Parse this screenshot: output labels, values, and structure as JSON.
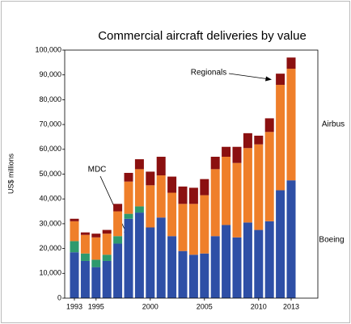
{
  "chart_data": {
    "type": "stacked-bar",
    "title": "Commercial aircraft deliveries by value",
    "ylabel": "US$ millions",
    "categories": [
      "1993",
      null,
      "1995",
      null,
      null,
      null,
      null,
      "2000",
      null,
      null,
      null,
      null,
      "2005",
      null,
      null,
      null,
      null,
      "2010",
      null,
      null,
      "2013"
    ],
    "series": [
      {
        "name": "Boeing",
        "color": "#2e4fa6",
        "values": [
          18500,
          15000,
          12500,
          15000,
          22000,
          32000,
          34500,
          28500,
          32500,
          25000,
          19000,
          17500,
          18000,
          25000,
          29500,
          24500,
          30500,
          27500,
          31000,
          43500,
          47500
        ]
      },
      {
        "name": "MDC",
        "color": "#2e9a6e",
        "values": [
          4500,
          3000,
          3000,
          2500,
          3000,
          2000,
          2500,
          0,
          0,
          0,
          0,
          0,
          0,
          0,
          0,
          0,
          0,
          0,
          0,
          0,
          0
        ]
      },
      {
        "name": "Airbus",
        "color": "#ef7f2a",
        "values": [
          8000,
          7500,
          9000,
          8500,
          10000,
          13000,
          15000,
          17000,
          17000,
          17500,
          19000,
          20500,
          23500,
          27000,
          27500,
          30000,
          30000,
          34500,
          36000,
          42500,
          45000
        ]
      },
      {
        "name": "Regionals",
        "color": "#8b1010",
        "values": [
          1000,
          1000,
          1500,
          1500,
          3000,
          3500,
          4000,
          5500,
          7500,
          6500,
          7000,
          6500,
          6500,
          5000,
          4000,
          6500,
          6000,
          3500,
          5500,
          4500,
          4500
        ]
      }
    ],
    "ylim": [
      0,
      100000
    ],
    "yticks": [
      0,
      {
        "value": 10000,
        "label": "10,000"
      },
      {
        "value": 20000,
        "label": "20,000"
      },
      {
        "value": 30000,
        "label": "30,000"
      },
      {
        "value": 40000,
        "label": "40,000"
      },
      {
        "value": 50000,
        "label": "50,000"
      },
      {
        "value": 60000,
        "label": "60,000"
      },
      {
        "value": 70000,
        "label": "70,000"
      },
      {
        "value": 80000,
        "label": "80,000"
      },
      {
        "value": 90000,
        "label": "90,000"
      },
      {
        "value": 100000,
        "label": "100,000"
      }
    ]
  }
}
